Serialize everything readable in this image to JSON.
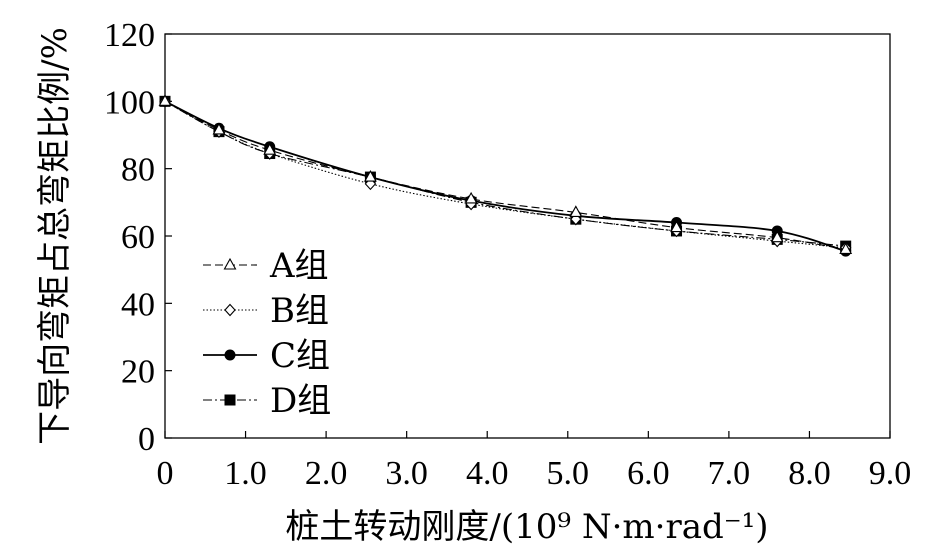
{
  "chart_data": {
    "type": "line",
    "xlabel": "桩土转动刚度/(10⁹ N·m·rad⁻¹)",
    "ylabel": "下导向弯矩占总弯矩比例/%",
    "xlim": [
      0,
      9.0
    ],
    "ylim": [
      0,
      120
    ],
    "x_ticks": [
      "0",
      "1.0",
      "2.0",
      "3.0",
      "4.0",
      "5.0",
      "6.0",
      "7.0",
      "8.0",
      "9.0"
    ],
    "y_ticks": [
      "0",
      "20",
      "40",
      "60",
      "80",
      "100",
      "120"
    ],
    "grid": false,
    "legend_position": "left",
    "series": [
      {
        "name": "A组",
        "marker": "triangle-open",
        "dash": "dashed",
        "x": [
          0,
          0.67,
          1.3,
          2.55,
          3.8,
          5.1,
          6.35,
          7.6,
          8.45
        ],
        "y": [
          100,
          91.5,
          85.5,
          77.5,
          71,
          67,
          62.5,
          59.5,
          56
        ]
      },
      {
        "name": "B组",
        "marker": "diamond-open",
        "dash": "dotted",
        "x": [
          0,
          0.67,
          1.3,
          2.55,
          3.8,
          5.1,
          6.35,
          7.6,
          8.45
        ],
        "y": [
          100,
          91,
          84.5,
          75.5,
          69.5,
          65,
          61.5,
          58.5,
          56.5
        ]
      },
      {
        "name": "C组",
        "marker": "circle-filled",
        "dash": "solid",
        "x": [
          0,
          0.67,
          1.3,
          2.55,
          3.8,
          5.1,
          6.35,
          7.6,
          8.45
        ],
        "y": [
          100,
          92,
          86.5,
          77.5,
          70.5,
          66,
          64,
          61.5,
          55.5
        ]
      },
      {
        "name": "D组",
        "marker": "square-filled",
        "dash": "dashdot",
        "x": [
          0,
          0.67,
          1.3,
          2.55,
          3.8,
          5.1,
          6.35,
          7.6,
          8.45
        ],
        "y": [
          100,
          91,
          84.5,
          77.5,
          70,
          65,
          61.5,
          59,
          57
        ]
      }
    ]
  }
}
